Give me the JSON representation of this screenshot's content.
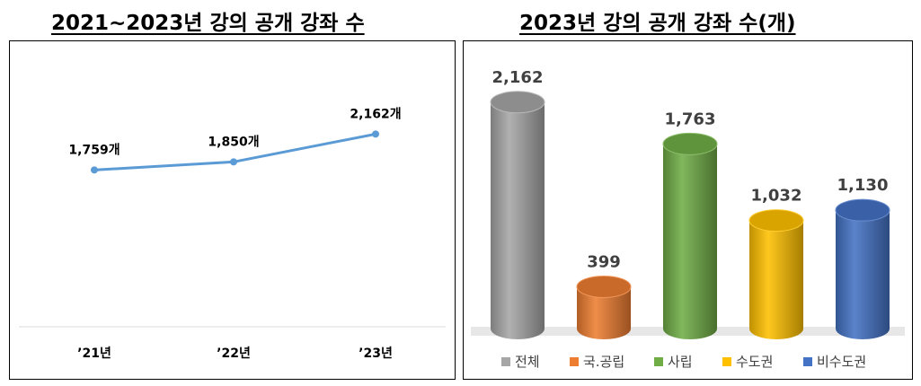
{
  "titles": {
    "left": "2021~2023년 강의 공개 강좌 수",
    "right": "2023년 강의 공개 강좌 수(개)"
  },
  "colors": {
    "line": "#5b9bd5",
    "bars": [
      "#a6a6a6",
      "#ed7d31",
      "#70ad47",
      "#ffc000",
      "#4472c4"
    ]
  },
  "chart_data": [
    {
      "type": "line",
      "title": "2021~2023년 강의 공개 강좌 수",
      "categories": [
        "’21년",
        "’22년",
        "’23년"
      ],
      "values": [
        1759,
        1850,
        2162
      ],
      "data_labels": [
        "1,759개",
        "1,850개",
        "2,162개"
      ],
      "ylim": [
        0,
        2800
      ],
      "grid": false
    },
    {
      "type": "bar",
      "title": "2023년 강의 공개 강좌 수(개)",
      "categories": [
        "전체",
        "국.공립",
        "사립",
        "수도권",
        "비수도권"
      ],
      "values": [
        2162,
        399,
        1763,
        1032,
        1130
      ],
      "data_labels": [
        "2,162",
        "399",
        "1,763",
        "1,032",
        "1,130"
      ],
      "legend": "bottom",
      "ylim": [
        0,
        2400
      ]
    }
  ]
}
